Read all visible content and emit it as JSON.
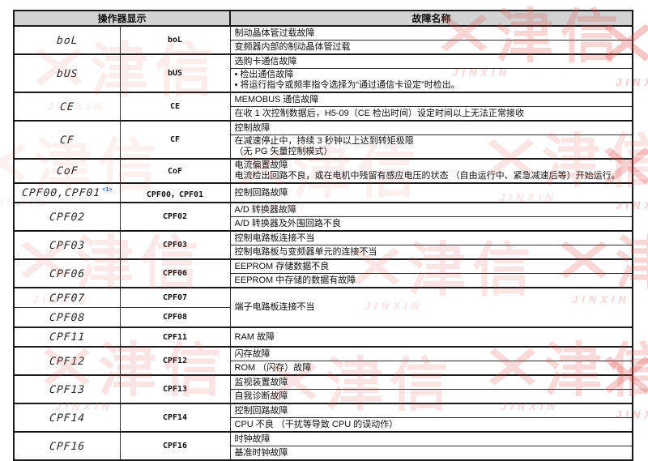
{
  "colors": {
    "header_bg": "#d2d2d2",
    "border": "#1a1a1a",
    "footnote": "#2b6bd6",
    "watermark": "#e04848"
  },
  "watermark": {
    "chars": "津信",
    "latin": "JINXIN",
    "mark": "✕"
  },
  "table": {
    "header": {
      "display": "操作器显示",
      "fault": "故障名称"
    },
    "groups": [
      {
        "codes": [
          {
            "display": "boL",
            "code": "boL"
          }
        ],
        "details": [
          [
            "制动晶体管过载故障"
          ],
          [
            "变频器内部的制动晶体管过载"
          ]
        ]
      },
      {
        "codes": [
          {
            "display": "bUS",
            "code": "bUS"
          }
        ],
        "details": [
          [
            "选购卡通信故障"
          ],
          [
            "• 检出通信故障",
            "• 将运行指令或频率指令选择为“通过通信卡设定”时检出。"
          ]
        ]
      },
      {
        "codes": [
          {
            "display": "CE",
            "code": "CE"
          }
        ],
        "details": [
          [
            "MEMOBUS 通信故障"
          ],
          [
            "在收 1 次控制数据后，H5-09（CE 检出时间）设定时间以上无法正常接收"
          ]
        ]
      },
      {
        "codes": [
          {
            "display": "CF",
            "code": "CF"
          }
        ],
        "details": [
          [
            "控制故障"
          ],
          [
            "在减速停止中，持续 3 秒钟以上达到转矩极限",
            "（无 PG 矢量控制模式）"
          ]
        ]
      },
      {
        "codes": [
          {
            "display": "CoF",
            "code": "CoF"
          }
        ],
        "details": [
          [
            "电流偏置故障",
            "电流检出回路不良，或在电机中残留有感应电压的状态 （自由运行中、紧急减速后等）开始运行。"
          ]
        ]
      },
      {
        "codes": [
          {
            "display": "CPF00,CPF01",
            "code": "CPF00，CPF01",
            "footnote": "<1>"
          }
        ],
        "details": [
          [
            "控制回路故障"
          ]
        ]
      },
      {
        "codes": [
          {
            "display": "CPF02",
            "code": "CPF02"
          }
        ],
        "details": [
          [
            "A/D 转换器故障"
          ],
          [
            "A/D 转换器及外围回路不良"
          ]
        ]
      },
      {
        "codes": [
          {
            "display": "CPF03",
            "code": "CPF03"
          }
        ],
        "details": [
          [
            "控制电路板连接不当"
          ],
          [
            "控制电路板与变频器单元的连接不当"
          ]
        ]
      },
      {
        "codes": [
          {
            "display": "CPF06",
            "code": "CPF06"
          }
        ],
        "details": [
          [
            "EEPROM 存储数据不良"
          ],
          [
            "EEPROM 中存储的数据有故障"
          ]
        ]
      },
      {
        "codes": [
          {
            "display": "CPF07",
            "code": "CPF07"
          },
          {
            "display": "CPF08",
            "code": "CPF08"
          }
        ],
        "details": [
          [
            "端子电路板连接不当"
          ]
        ]
      },
      {
        "codes": [
          {
            "display": "CPF11",
            "code": "CPF11"
          }
        ],
        "details": [
          [
            "RAM 故障"
          ]
        ]
      },
      {
        "codes": [
          {
            "display": "CPF12",
            "code": "CPF12"
          }
        ],
        "details": [
          [
            "闪存故障"
          ],
          [
            "ROM （闪存）故障"
          ]
        ]
      },
      {
        "codes": [
          {
            "display": "CPF13",
            "code": "CPF13"
          }
        ],
        "details": [
          [
            "监视装置故障"
          ],
          [
            "自我诊断故障"
          ]
        ]
      },
      {
        "codes": [
          {
            "display": "CPF14",
            "code": "CPF14"
          }
        ],
        "details": [
          [
            "控制回路故障"
          ],
          [
            "CPU 不良 （干扰等导致 CPU 的误动作）"
          ]
        ]
      },
      {
        "codes": [
          {
            "display": "CPF16",
            "code": "CPF16"
          }
        ],
        "details": [
          [
            "时钟故障"
          ],
          [
            "基准时钟故障"
          ]
        ]
      }
    ]
  }
}
